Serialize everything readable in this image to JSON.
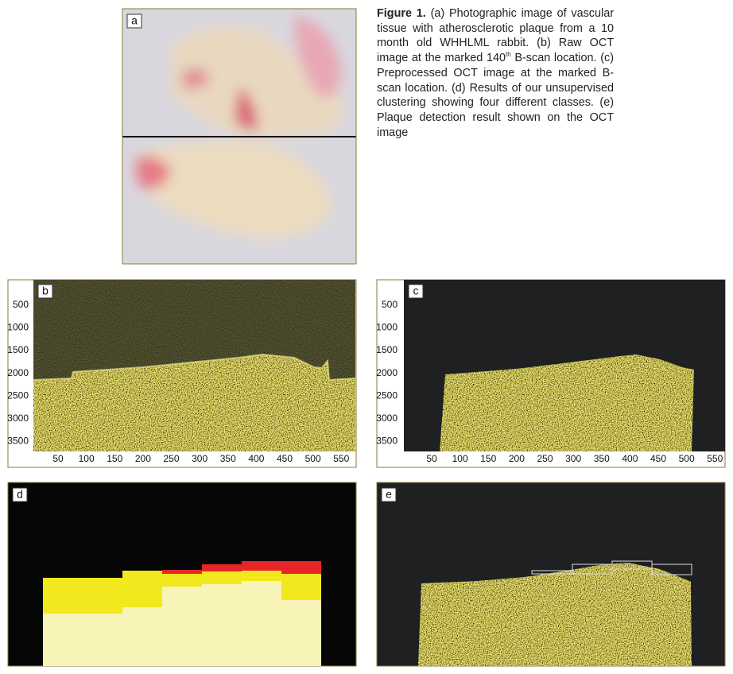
{
  "panels": [
    {
      "label": "a"
    },
    {
      "label": "b"
    },
    {
      "label": "c"
    },
    {
      "label": "d"
    },
    {
      "label": "e"
    }
  ],
  "caption": {
    "title": "Figure 1.",
    "parts": [
      "(a) Photographic image of vascular tissue with atherosclerotic plaque from a 10 month old WHHLML rabbit. (b) Raw OCT image at the marked 140",
      "th",
      " B-scan location. (c) Preprocessed OCT image at the marked B-scan location. (d) Results of our unsupervised clustering showing four different classes. (e) Plaque detection result shown on the OCT image"
    ]
  },
  "axes": [
    {
      "yticks": [
        500,
        1000,
        1500,
        2000,
        2500,
        3000,
        3500
      ],
      "xticks": [
        50,
        100,
        150,
        200,
        250,
        300,
        350,
        400,
        450,
        500,
        550
      ]
    },
    {
      "yticks": [
        500,
        1000,
        1500,
        2000,
        2500,
        3000,
        3500
      ],
      "xticks": [
        50,
        100,
        150,
        200,
        250,
        300,
        350,
        400,
        450,
        500,
        550
      ]
    }
  ]
}
